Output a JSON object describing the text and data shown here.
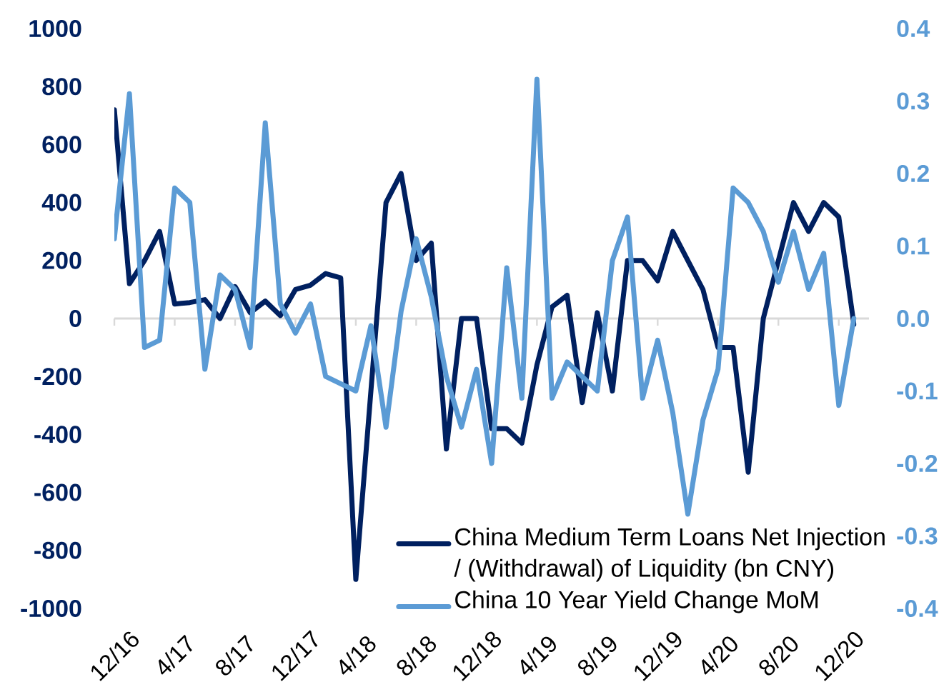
{
  "chart_data": {
    "type": "line",
    "categories": [
      "12/16",
      null,
      null,
      null,
      "4/17",
      null,
      null,
      null,
      "8/17",
      null,
      null,
      null,
      "12/17",
      null,
      null,
      null,
      "4/18",
      null,
      null,
      null,
      "8/18",
      null,
      null,
      null,
      "12/18",
      null,
      null,
      null,
      "4/19",
      null,
      null,
      null,
      "8/19",
      null,
      null,
      null,
      "12/19",
      null,
      null,
      null,
      "4/20",
      null,
      null,
      null,
      "8/20",
      null,
      null,
      null,
      "12/20",
      null
    ],
    "series": [
      {
        "name": "China Medium Term Loans Net Injection / (Withdrawal) of Liquidity (bn CNY)",
        "color": "#002060",
        "values": [
          720,
          120,
          200,
          300,
          50,
          55,
          65,
          0,
          110,
          20,
          60,
          10,
          100,
          115,
          155,
          140,
          -900,
          -250,
          400,
          500,
          200,
          260,
          -450,
          0,
          0,
          -380,
          -380,
          -430,
          -160,
          40,
          80,
          -290,
          20,
          -250,
          200,
          200,
          130,
          300,
          200,
          100,
          -100,
          -100,
          -530,
          0,
          200,
          400,
          300,
          400,
          350,
          -20
        ]
      },
      {
        "name": "China 10 Year Yield Change MoM",
        "color": "#5b9bd5",
        "axis": "y2",
        "values": [
          0.11,
          0.31,
          -0.04,
          -0.03,
          0.18,
          0.16,
          -0.07,
          0.06,
          0.04,
          -0.04,
          0.27,
          0.02,
          -0.02,
          0.02,
          -0.08,
          -0.09,
          -0.1,
          -0.01,
          -0.15,
          0.01,
          0.11,
          0.03,
          -0.08,
          -0.15,
          -0.07,
          -0.2,
          0.07,
          -0.11,
          0.33,
          -0.11,
          -0.06,
          -0.08,
          -0.1,
          0.08,
          0.14,
          -0.11,
          -0.03,
          -0.13,
          -0.27,
          -0.14,
          -0.07,
          0.18,
          0.16,
          0.12,
          0.05,
          0.12,
          0.04,
          0.09,
          -0.12,
          0.0
        ]
      }
    ],
    "ylim": [
      -1000,
      1000
    ],
    "yticks": [
      -1000,
      -800,
      -600,
      -400,
      -200,
      0,
      200,
      400,
      600,
      800,
      1000
    ],
    "y2lim": [
      -0.4,
      0.4
    ],
    "y2ticks": [
      -0.4,
      -0.3,
      -0.2,
      -0.1,
      {
        "value": 0,
        "label": "0.0"
      },
      0.1,
      0.2,
      0.3,
      0.4
    ],
    "legend": "bottom right"
  }
}
